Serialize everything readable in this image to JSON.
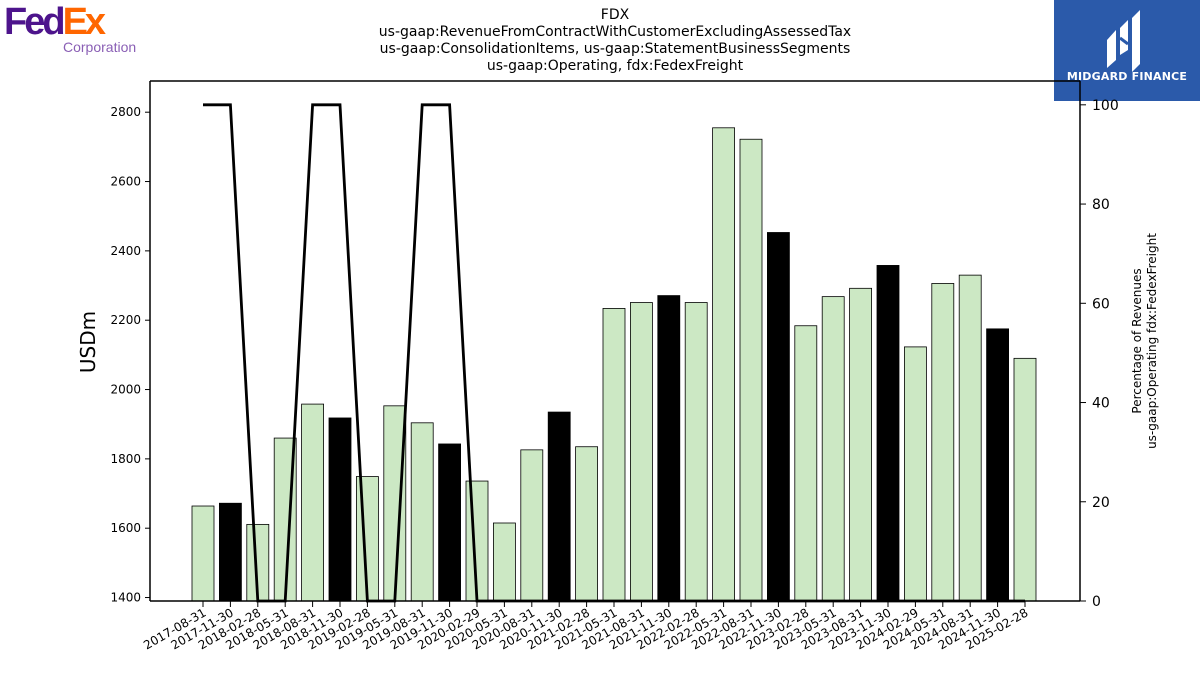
{
  "logos": {
    "left": {
      "word_fed": "Fed",
      "word_ex": "Ex",
      "sub": "Corporation",
      "colors": {
        "fed": "#4d148c",
        "ex": "#ff6600",
        "sub": "#8a5fb5"
      }
    },
    "right": {
      "text": "MIDGARD FINANCE",
      "background": "#2b5aaa"
    }
  },
  "title_lines": [
    "FDX",
    "us-gaap:RevenueFromContractWithCustomerExcludingAssessedTax",
    "us-gaap:ConsolidationItems, us-gaap:StatementBusinessSegments",
    "us-gaap:Operating, fdx:FedexFreight"
  ],
  "chart_data": {
    "type": "bar",
    "categories": [
      "2017-08-31",
      "2017-11-30",
      "2018-02-28",
      "2018-05-31",
      "2018-08-31",
      "2018-11-30",
      "2019-02-28",
      "2019-05-31",
      "2019-08-31",
      "2019-11-30",
      "2020-02-29",
      "2020-05-31",
      "2020-08-31",
      "2020-11-30",
      "2021-02-28",
      "2021-05-31",
      "2021-08-31",
      "2021-11-30",
      "2022-02-28",
      "2022-05-31",
      "2022-08-31",
      "2022-11-30",
      "2023-02-28",
      "2023-05-31",
      "2023-08-31",
      "2023-11-30",
      "2024-02-29",
      "2024-05-31",
      "2024-08-31",
      "2024-11-30",
      "2025-02-28"
    ],
    "values": [
      1664,
      1672,
      1611,
      1860,
      1958,
      1918,
      1749,
      1953,
      1904,
      1843,
      1736,
      1615,
      1826,
      1935,
      1835,
      2234,
      2251,
      2271,
      2251,
      2755,
      2722,
      2453,
      2184,
      2268,
      2292,
      2358,
      2123,
      2306,
      2330,
      2175,
      2090
    ],
    "highlighted": [
      false,
      true,
      false,
      false,
      false,
      true,
      false,
      false,
      false,
      true,
      false,
      false,
      false,
      true,
      false,
      false,
      false,
      true,
      false,
      false,
      false,
      true,
      false,
      false,
      false,
      true,
      false,
      false,
      false,
      true,
      false
    ],
    "line_series": {
      "values": [
        100,
        100,
        0,
        0,
        100,
        100,
        0,
        0,
        100,
        100,
        0,
        0,
        0,
        0,
        0,
        0,
        0,
        0,
        0,
        0,
        0,
        0,
        0,
        0,
        0,
        0,
        0,
        0,
        0,
        0,
        0
      ]
    },
    "ylabel": "USDm",
    "ylabel_right_lines": [
      "Percentage of Revenues",
      "us-gaap:Operating fdx:FedexFreight"
    ],
    "ylim": [
      1390,
      2890
    ],
    "yticks": [
      1400,
      1600,
      1800,
      2000,
      2200,
      2400,
      2600,
      2800
    ],
    "y2lim": [
      0,
      104.8
    ],
    "y2ticks": [
      0,
      20,
      40,
      60,
      80,
      100
    ],
    "colors": {
      "bar": "#cce8c4",
      "bar_highlight": "#000000",
      "line": "#000000"
    },
    "grid": false
  }
}
